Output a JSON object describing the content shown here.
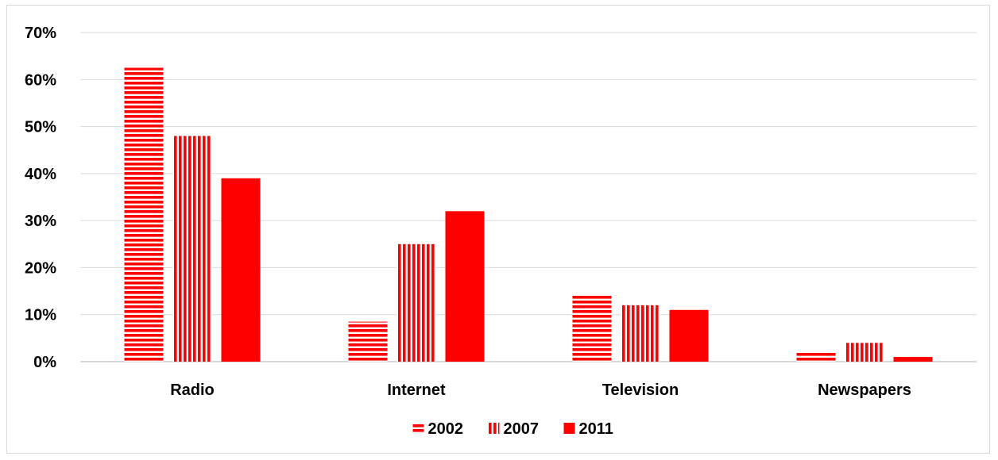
{
  "chart_data": {
    "type": "bar",
    "title": "",
    "xlabel": "",
    "ylabel": "",
    "categories": [
      "Radio",
      "Internet",
      "Television",
      "Newspapers"
    ],
    "series": [
      {
        "name": "2002",
        "values": [
          62.5,
          8.5,
          14,
          2
        ],
        "pattern": "horizontal-stripes"
      },
      {
        "name": "2007",
        "values": [
          48,
          25,
          12,
          4
        ],
        "pattern": "vertical-stripes"
      },
      {
        "name": "2011",
        "values": [
          39,
          32,
          11,
          1
        ],
        "pattern": "solid"
      }
    ],
    "ylim": [
      0,
      70
    ],
    "yticks": [
      0,
      10,
      20,
      30,
      40,
      50,
      60,
      70
    ],
    "ytick_labels": [
      "0%",
      "10%",
      "20%",
      "30%",
      "40%",
      "50%",
      "60%",
      "70%"
    ],
    "grid": true,
    "legend_position": "bottom-center",
    "colors": {
      "bar": "#ff0000",
      "grid": "#d9d9d9",
      "text": "#000000"
    }
  }
}
